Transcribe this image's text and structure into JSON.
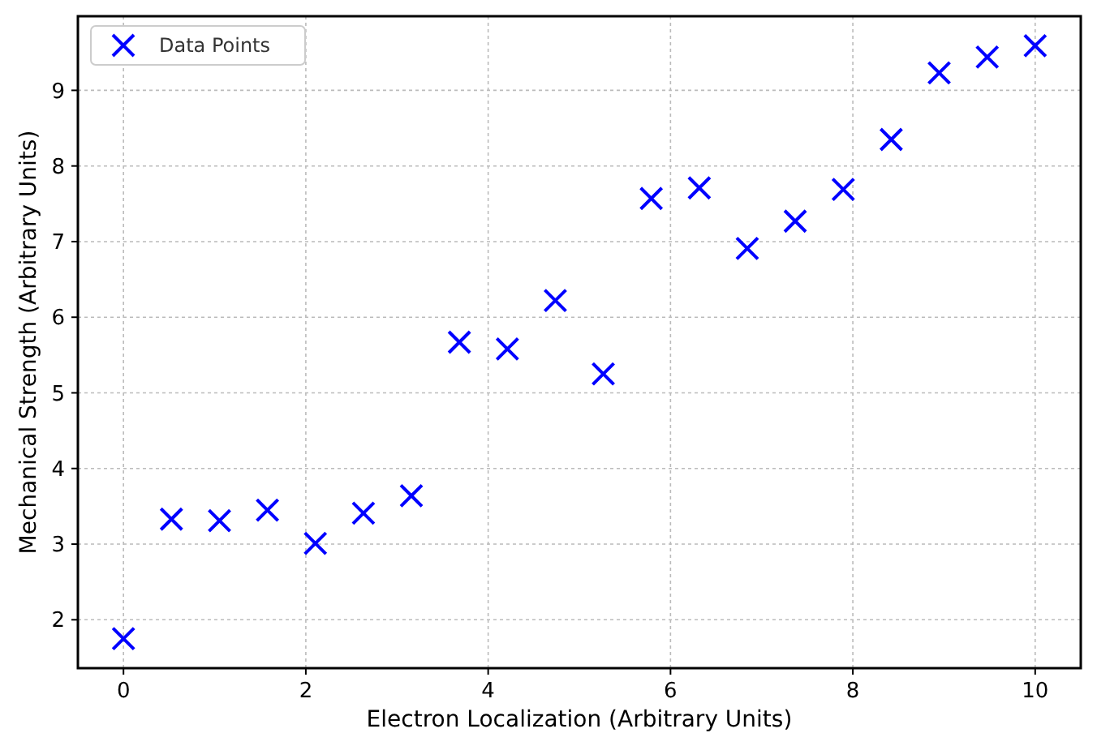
{
  "chart_data": {
    "type": "scatter",
    "xlabel": "Electron Localization (Arbitrary Units)",
    "ylabel": "Mechanical Strength (Arbitrary Units)",
    "x": [
      0,
      0.526,
      1.053,
      1.579,
      2.105,
      2.632,
      3.158,
      3.684,
      4.211,
      4.737,
      5.263,
      5.789,
      6.316,
      6.842,
      7.368,
      7.895,
      8.421,
      8.947,
      9.474,
      10
    ],
    "series": [
      {
        "name": "Data Points",
        "color": "#0000ff",
        "values": [
          1.75,
          3.33,
          3.31,
          3.45,
          3.01,
          3.41,
          3.64,
          5.67,
          5.58,
          6.22,
          5.25,
          7.57,
          7.71,
          6.91,
          7.27,
          7.69,
          8.35,
          9.23,
          9.44,
          9.59
        ]
      }
    ],
    "xlim": [
      -0.5,
      10.5
    ],
    "ylim": [
      1.36,
      9.98
    ],
    "xticks": [
      0,
      2,
      4,
      6,
      8,
      10
    ],
    "yticks": [
      2,
      3,
      4,
      5,
      6,
      7,
      8,
      9
    ],
    "grid": true,
    "legend": "top left",
    "marker": "cross"
  }
}
